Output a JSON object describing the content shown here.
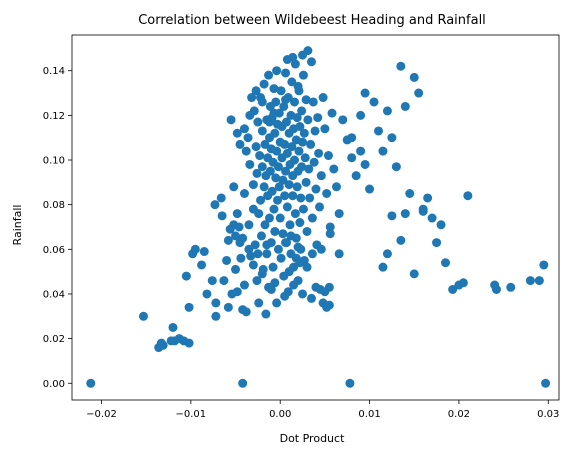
{
  "chart_data": {
    "type": "scatter",
    "title": "Correlation between Wildebeest Heading and Rainfall",
    "xlabel": "Dot Product",
    "ylabel": "Rainfall",
    "xlim": [
      -0.0233,
      0.0312
    ],
    "ylim": [
      -0.0075,
      0.156
    ],
    "xticks": [
      -0.02,
      -0.01,
      0.0,
      0.01,
      0.02,
      0.03
    ],
    "xtick_labels": [
      "−0.02",
      "−0.01",
      "0.00",
      "0.01",
      "0.02",
      "0.03"
    ],
    "yticks": [
      0.0,
      0.02,
      0.04,
      0.06,
      0.08,
      0.1,
      0.12,
      0.14
    ],
    "ytick_labels": [
      "0.00",
      "0.02",
      "0.04",
      "0.06",
      "0.08",
      "0.10",
      "0.12",
      "0.14"
    ],
    "grid": false,
    "legend": "none",
    "marker_color": "#1f77b4",
    "points": [
      [
        -0.0212,
        0.0
      ],
      [
        -0.0042,
        0.0
      ],
      [
        0.0078,
        0.0
      ],
      [
        0.0297,
        0.0
      ],
      [
        -0.0153,
        0.03
      ],
      [
        -0.0136,
        0.016
      ],
      [
        -0.0133,
        0.018
      ],
      [
        -0.0131,
        0.017
      ],
      [
        -0.0122,
        0.019
      ],
      [
        -0.012,
        0.025
      ],
      [
        -0.0118,
        0.019
      ],
      [
        -0.0113,
        0.02
      ],
      [
        -0.0108,
        0.019
      ],
      [
        -0.0102,
        0.018
      ],
      [
        -0.0105,
        0.048
      ],
      [
        -0.0102,
        0.034
      ],
      [
        -0.0098,
        0.058
      ],
      [
        -0.0095,
        0.06
      ],
      [
        -0.0085,
        0.059
      ],
      [
        -0.0088,
        0.053
      ],
      [
        -0.0082,
        0.04
      ],
      [
        -0.0076,
        0.046
      ],
      [
        -0.0072,
        0.036
      ],
      [
        -0.0072,
        0.03
      ],
      [
        -0.0073,
        0.08
      ],
      [
        -0.0066,
        0.083
      ],
      [
        -0.0063,
        0.046
      ],
      [
        -0.006,
        0.055
      ],
      [
        -0.0058,
        0.034
      ],
      [
        -0.0058,
        0.064
      ],
      [
        -0.0056,
        0.069
      ],
      [
        -0.0054,
        0.04
      ],
      [
        -0.0052,
        0.071
      ],
      [
        -0.0052,
        0.088
      ],
      [
        -0.005,
        0.051
      ],
      [
        -0.0048,
        0.041
      ],
      [
        -0.0048,
        0.076
      ],
      [
        -0.0046,
        0.07
      ],
      [
        -0.0044,
        0.056
      ],
      [
        -0.0042,
        0.033
      ],
      [
        -0.0042,
        0.065
      ],
      [
        -0.004,
        0.044
      ],
      [
        -0.004,
        0.085
      ],
      [
        -0.0038,
        0.104
      ],
      [
        -0.0038,
        0.032
      ],
      [
        -0.0036,
        0.11
      ],
      [
        -0.0035,
        0.071
      ],
      [
        -0.0034,
        0.098
      ],
      [
        -0.0033,
        0.057
      ],
      [
        -0.0032,
        0.128
      ],
      [
        -0.003,
        0.089
      ],
      [
        -0.003,
        0.078
      ],
      [
        -0.0029,
        0.122
      ],
      [
        -0.0028,
        0.062
      ],
      [
        -0.0027,
        0.106
      ],
      [
        -0.0026,
        0.046
      ],
      [
        -0.0026,
        0.094
      ],
      [
        -0.0025,
        0.117
      ],
      [
        -0.0024,
        0.076
      ],
      [
        -0.0024,
        0.036
      ],
      [
        -0.0023,
        0.102
      ],
      [
        -0.0022,
        0.082
      ],
      [
        -0.0022,
        0.128
      ],
      [
        -0.0021,
        0.066
      ],
      [
        -0.002,
        0.113
      ],
      [
        -0.002,
        0.097
      ],
      [
        -0.0019,
        0.051
      ],
      [
        -0.0018,
        0.088
      ],
      [
        -0.0018,
        0.134
      ],
      [
        -0.0017,
        0.107
      ],
      [
        -0.0017,
        0.071
      ],
      [
        -0.0016,
        0.093
      ],
      [
        -0.0016,
        0.031
      ],
      [
        -0.0015,
        0.118
      ],
      [
        -0.0015,
        0.058
      ],
      [
        -0.0014,
        0.101
      ],
      [
        -0.0014,
        0.084
      ],
      [
        -0.0013,
        0.138
      ],
      [
        -0.0013,
        0.043
      ],
      [
        -0.0012,
        0.11
      ],
      [
        -0.0012,
        0.074
      ],
      [
        -0.0011,
        0.124
      ],
      [
        -0.0011,
        0.095
      ],
      [
        -0.001,
        0.063
      ],
      [
        -0.001,
        0.105
      ],
      [
        -0.0009,
        0.086
      ],
      [
        -0.0009,
        0.119
      ],
      [
        -0.0008,
        0.052
      ],
      [
        -0.0008,
        0.099
      ],
      [
        -0.0007,
        0.132
      ],
      [
        -0.0007,
        0.078
      ],
      [
        -0.0006,
        0.112
      ],
      [
        -0.0006,
        0.068
      ],
      [
        -0.0005,
        0.092
      ],
      [
        -0.0005,
        0.126
      ],
      [
        -0.0004,
        0.104
      ],
      [
        -0.0004,
        0.036
      ],
      [
        -0.0003,
        0.116
      ],
      [
        -0.0003,
        0.082
      ],
      [
        -0.0002,
        0.06
      ],
      [
        -0.0002,
        0.097
      ],
      [
        -0.0001,
        0.121
      ],
      [
        -0.0001,
        0.088
      ],
      [
        0.0,
        0.108
      ],
      [
        0.0,
        0.074
      ],
      [
        0.0001,
        0.131
      ],
      [
        0.0001,
        0.056
      ],
      [
        0.0002,
        0.101
      ],
      [
        0.0002,
        0.115
      ],
      [
        0.0003,
        0.091
      ],
      [
        0.0003,
        0.067
      ],
      [
        0.0004,
        0.124
      ],
      [
        0.0004,
        0.048
      ],
      [
        0.0005,
        0.107
      ],
      [
        0.0005,
        0.084
      ],
      [
        0.0006,
        0.139
      ],
      [
        0.0006,
        0.095
      ],
      [
        0.0007,
        0.117
      ],
      [
        0.0007,
        0.063
      ],
      [
        0.0008,
        0.103
      ],
      [
        0.0008,
        0.079
      ],
      [
        0.0009,
        0.128
      ],
      [
        0.0009,
        0.041
      ],
      [
        0.001,
        0.112
      ],
      [
        0.001,
        0.089
      ],
      [
        0.0011,
        0.098
      ],
      [
        0.0011,
        0.071
      ],
      [
        0.0012,
        0.12
      ],
      [
        0.0012,
        0.058
      ],
      [
        0.0013,
        0.106
      ],
      [
        0.0013,
        0.135
      ],
      [
        0.0014,
        0.084
      ],
      [
        0.0014,
        0.093
      ],
      [
        0.0015,
        0.114
      ],
      [
        0.0015,
        0.052
      ],
      [
        0.0016,
        0.126
      ],
      [
        0.0016,
        0.1
      ],
      [
        0.0017,
        0.076
      ],
      [
        0.0017,
        0.143
      ],
      [
        0.0018,
        0.109
      ],
      [
        0.0018,
        0.065
      ],
      [
        0.0019,
        0.119
      ],
      [
        0.0019,
        0.088
      ],
      [
        0.002,
        0.095
      ],
      [
        0.002,
        0.046
      ],
      [
        0.0021,
        0.131
      ],
      [
        0.0021,
        0.104
      ],
      [
        0.0022,
        0.072
      ],
      [
        0.0022,
        0.115
      ],
      [
        0.0023,
        0.083
      ],
      [
        0.0023,
        0.06
      ],
      [
        0.0024,
        0.122
      ],
      [
        0.0024,
        0.097
      ],
      [
        0.0025,
        0.147
      ],
      [
        0.0025,
        0.108
      ],
      [
        0.0026,
        0.078
      ],
      [
        0.0026,
        0.138
      ],
      [
        0.0027,
        0.112
      ],
      [
        0.0027,
        0.055
      ],
      [
        0.0028,
        0.101
      ],
      [
        0.0029,
        0.127
      ],
      [
        0.0029,
        0.09
      ],
      [
        0.003,
        0.068
      ],
      [
        0.0031,
        0.118
      ],
      [
        0.0031,
        0.149
      ],
      [
        0.0032,
        0.096
      ],
      [
        0.0033,
        0.083
      ],
      [
        0.0034,
        0.107
      ],
      [
        0.0035,
        0.144
      ],
      [
        0.0036,
        0.074
      ],
      [
        0.0037,
        0.126
      ],
      [
        0.0038,
        0.099
      ],
      [
        0.0039,
        0.113
      ],
      [
        0.004,
        0.087
      ],
      [
        0.0041,
        0.062
      ],
      [
        0.0042,
        0.119
      ],
      [
        0.0043,
        0.103
      ],
      [
        0.0044,
        0.079
      ],
      [
        0.0046,
        0.093
      ],
      [
        0.0048,
        0.128
      ],
      [
        0.005,
        0.114
      ],
      [
        0.0052,
        0.085
      ],
      [
        0.0054,
        0.102
      ],
      [
        0.0056,
        0.07
      ],
      [
        0.0058,
        0.121
      ],
      [
        0.006,
        0.096
      ],
      [
        0.0063,
        0.088
      ],
      [
        0.0066,
        0.076
      ],
      [
        0.007,
        0.118
      ],
      [
        0.0075,
        0.109
      ],
      [
        0.008,
        0.101
      ],
      [
        0.0085,
        0.093
      ],
      [
        0.009,
        0.12
      ],
      [
        0.0095,
        0.13
      ],
      [
        0.01,
        0.087
      ],
      [
        0.0105,
        0.126
      ],
      [
        0.011,
        0.113
      ],
      [
        0.0115,
        0.104
      ],
      [
        0.012,
        0.122
      ],
      [
        0.0125,
        0.11
      ],
      [
        0.013,
        0.097
      ],
      [
        0.0135,
        0.142
      ],
      [
        0.014,
        0.124
      ],
      [
        0.0145,
        0.085
      ],
      [
        0.015,
        0.137
      ],
      [
        0.0155,
        0.13
      ],
      [
        0.016,
        0.077
      ],
      [
        0.0165,
        0.083
      ],
      [
        0.017,
        0.074
      ],
      [
        0.0175,
        0.063
      ],
      [
        0.018,
        0.071
      ],
      [
        0.0185,
        0.054
      ],
      [
        0.0193,
        0.042
      ],
      [
        0.02,
        0.044
      ],
      [
        0.0205,
        0.045
      ],
      [
        0.021,
        0.084
      ],
      [
        0.024,
        0.044
      ],
      [
        0.0242,
        0.042
      ],
      [
        0.0258,
        0.043
      ],
      [
        0.028,
        0.046
      ],
      [
        0.029,
        0.046
      ],
      [
        0.0295,
        0.053
      ],
      [
        0.0115,
        0.052
      ],
      [
        0.012,
        0.058
      ],
      [
        0.0135,
        0.064
      ],
      [
        0.014,
        0.076
      ],
      [
        0.015,
        0.049
      ],
      [
        0.016,
        0.078
      ],
      [
        0.0125,
        0.075
      ],
      [
        0.009,
        0.104
      ],
      [
        0.008,
        0.11
      ],
      [
        0.0095,
        0.098
      ],
      [
        -0.0006,
        0.045
      ],
      [
        -0.001,
        0.042
      ],
      [
        0.0005,
        0.039
      ],
      [
        0.0015,
        0.044
      ],
      [
        0.0025,
        0.04
      ],
      [
        0.0035,
        0.038
      ],
      [
        0.0045,
        0.042
      ],
      [
        0.0048,
        0.036
      ],
      [
        0.0052,
        0.034
      ],
      [
        0.0055,
        0.043
      ],
      [
        0.005,
        0.041
      ],
      [
        0.0055,
        0.035
      ],
      [
        0.004,
        0.043
      ],
      [
        0.003,
        0.052
      ],
      [
        0.002,
        0.061
      ],
      [
        0.001,
        0.05
      ],
      [
        -0.0015,
        0.062
      ],
      [
        -0.0025,
        0.058
      ],
      [
        -0.003,
        0.053
      ],
      [
        -0.002,
        0.049
      ],
      [
        0.0006,
        0.063
      ],
      [
        0.0012,
        0.066
      ],
      [
        0.0018,
        0.056
      ],
      [
        0.0022,
        0.054
      ],
      [
        0.0036,
        0.058
      ],
      [
        0.0046,
        0.06
      ],
      [
        0.0056,
        0.067
      ],
      [
        0.0066,
        0.058
      ],
      [
        -0.0035,
        0.06
      ],
      [
        -0.0045,
        0.063
      ],
      [
        -0.005,
        0.066
      ],
      [
        -0.0065,
        0.075
      ],
      [
        -0.0004,
        0.14
      ],
      [
        0.0008,
        0.145
      ],
      [
        0.0014,
        0.146
      ],
      [
        0.002,
        0.133
      ],
      [
        0.0006,
        0.127
      ],
      [
        -0.0007,
        0.121
      ],
      [
        -0.0012,
        0.117
      ],
      [
        -0.002,
        0.126
      ],
      [
        -0.0027,
        0.131
      ],
      [
        -0.0034,
        0.12
      ],
      [
        -0.004,
        0.114
      ],
      [
        -0.0045,
        0.107
      ],
      [
        -0.0048,
        0.112
      ],
      [
        -0.0055,
        0.118
      ]
    ]
  }
}
